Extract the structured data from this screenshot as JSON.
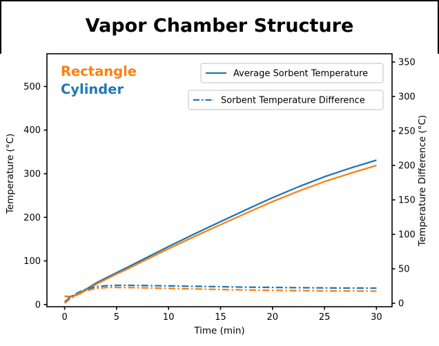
{
  "figure": {
    "background": "#ffffff",
    "frame_color": "#000000"
  },
  "chart_data": {
    "type": "line",
    "title": "Vapor Chamber Structure",
    "xlabel": "Time (min)",
    "ylabel_left": "Temperature (°C)",
    "ylabel_right": "Temperature Difference (°C)",
    "grid": false,
    "legend_position": "upper right",
    "xlim": [
      -1.7,
      31.5
    ],
    "ylim_left": [
      -5,
      575
    ],
    "ylim_right": [
      -5,
      362
    ],
    "x_ticks": [
      0,
      5,
      10,
      15,
      20,
      25,
      30
    ],
    "y_left_ticks": [
      0,
      100,
      200,
      300,
      400,
      500
    ],
    "y_right_ticks": [
      0,
      50,
      100,
      150,
      200,
      250,
      300,
      350
    ],
    "colors": {
      "cylinder": "#1f77b4",
      "rectangle": "#ff7f0e"
    },
    "annotations": [
      {
        "text": "Rectangle",
        "color": "#ff7f0e"
      },
      {
        "text": "Cylinder",
        "color": "#1f77b4"
      }
    ],
    "legend": [
      {
        "label": "Average Sorbent Temperature",
        "linestyle": "solid",
        "color": "#1f77b4"
      },
      {
        "label": "Sorbent Temperature Difference",
        "linestyle": "dashdot",
        "color": "#1f77b4"
      }
    ],
    "x": [
      0,
      0.5,
      1,
      1.5,
      2,
      3,
      4,
      5,
      6,
      7.5,
      10,
      12.5,
      15,
      17.5,
      20,
      22.5,
      25,
      27.5,
      30
    ],
    "series": [
      {
        "structure": "Cylinder",
        "measure": "Average Sorbent Temperature",
        "axis": "left",
        "linestyle": "solid",
        "color": "#1f77b4",
        "y": [
          19,
          18,
          21,
          27,
          34,
          49,
          61,
          73,
          85,
          103,
          133,
          162,
          190,
          218,
          245,
          270,
          293,
          313,
          331
        ]
      },
      {
        "structure": "Rectangle",
        "measure": "Average Sorbent Temperature",
        "axis": "left",
        "linestyle": "solid",
        "color": "#ff7f0e",
        "y": [
          19,
          17,
          20,
          25,
          32,
          46,
          58,
          70,
          81,
          99,
          128,
          156,
          183,
          210,
          236,
          260,
          282,
          301,
          319
        ]
      },
      {
        "structure": "Cylinder",
        "measure": "Sorbent Temperature Difference",
        "axis": "right",
        "linestyle": "dashdot",
        "color": "#1f77b4",
        "y": [
          2,
          8,
          13,
          17,
          20,
          24,
          25.5,
          26,
          26,
          25.8,
          25.2,
          24.6,
          24,
          23.4,
          23,
          22.6,
          22.3,
          22.1,
          22
        ]
      },
      {
        "structure": "Rectangle",
        "measure": "Sorbent Temperature Difference",
        "axis": "right",
        "linestyle": "dashdot",
        "color": "#ff7f0e",
        "y": [
          0,
          6,
          11,
          15,
          18,
          21.5,
          22.8,
          23,
          22.8,
          22.4,
          21.6,
          20.8,
          20,
          19.3,
          18.7,
          18.3,
          18,
          17.8,
          17.6
        ]
      }
    ]
  }
}
